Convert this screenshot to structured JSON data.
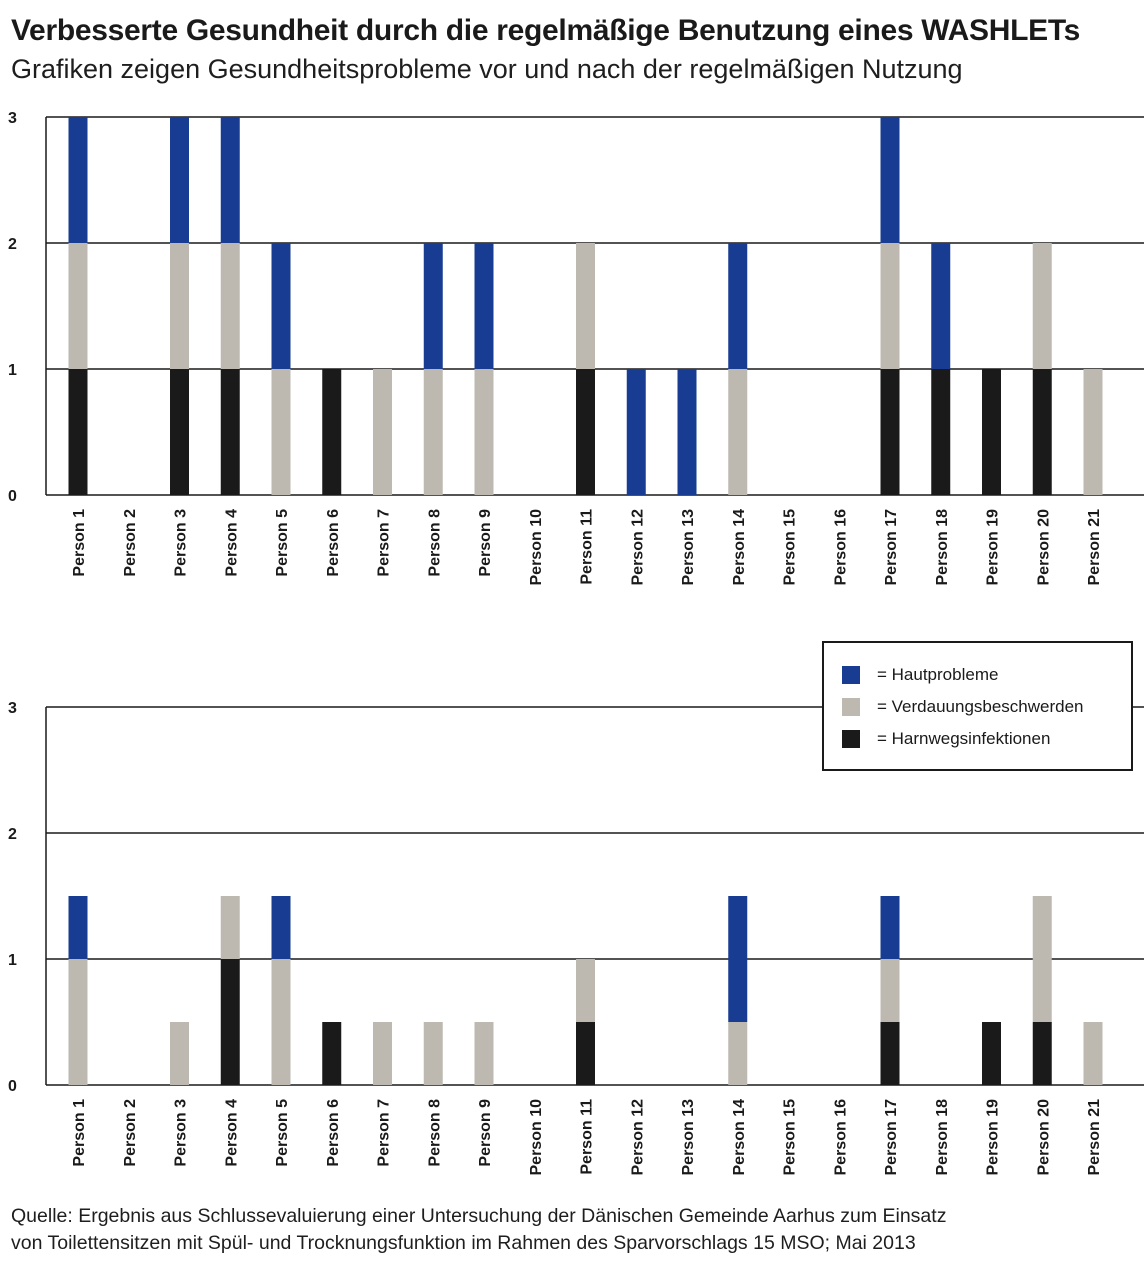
{
  "title": "Verbesserte Gesundheit durch die regelmäßige Benutzung eines WASHLETs",
  "subtitle": "Grafiken zeigen Gesundheitsprobleme vor und nach der regelmäßigen Nutzung",
  "colors": {
    "hautprobleme": "#173c91",
    "verdauungsbeschwerden": "#bdb8b0",
    "harnwegsinfektionen": "#1a1a1a"
  },
  "legend": [
    {
      "label": "= Hautprobleme",
      "color": "#173c91"
    },
    {
      "label": "= Verdauungsbeschwerden",
      "color": "#bdb8b0"
    },
    {
      "label": "= Harnwegsinfektionen",
      "color": "#1a1a1a"
    }
  ],
  "source": {
    "line1": "Quelle: Ergebnis aus Schlussevaluierung einer Untersuchung der Dänischen Gemeinde Aarhus zum Einsatz",
    "line2": "von Toilettensitzen mit Spül- und Trocknungsfunktion im Rahmen des Sparvorschlags 15 MSO; Mai 2013"
  },
  "chart_data": [
    {
      "type": "bar",
      "stacked": true,
      "categories": [
        "Person 1",
        "Person 2",
        "Person 3",
        "Person 4",
        "Person 5",
        "Person 6",
        "Person 7",
        "Person 8",
        "Person 9",
        "Person 10",
        "Person 11",
        "Person 12",
        "Person 13",
        "Person 14",
        "Person 15",
        "Person 16",
        "Person 17",
        "Person 18",
        "Person 19",
        "Person 20",
        "Person 21"
      ],
      "ylim": [
        0,
        3
      ],
      "yticks": [
        "0",
        "1",
        "2",
        "3"
      ],
      "grid": true,
      "series": [
        {
          "name": "Harnwegsinfektionen",
          "color": "#1a1a1a",
          "values": [
            1,
            0,
            1,
            1,
            0,
            1,
            0,
            0,
            0,
            0,
            1,
            0,
            0,
            0,
            0,
            0,
            1,
            1,
            1,
            1,
            0
          ]
        },
        {
          "name": "Verdauungsbeschwerden",
          "color": "#bdb8b0",
          "values": [
            1,
            0,
            1,
            1,
            1,
            0,
            1,
            1,
            1,
            0,
            1,
            0,
            0,
            1,
            0,
            0,
            1,
            0,
            0,
            1,
            1
          ]
        },
        {
          "name": "Hautprobleme",
          "color": "#173c91",
          "values": [
            1,
            0,
            1,
            1,
            1,
            0,
            0,
            1,
            1,
            0,
            0,
            1,
            1,
            1,
            0,
            0,
            1,
            1,
            0,
            0,
            0
          ]
        }
      ]
    },
    {
      "type": "bar",
      "stacked": true,
      "categories": [
        "Person 1",
        "Person 2",
        "Person 3",
        "Person 4",
        "Person 5",
        "Person 6",
        "Person 7",
        "Person 8",
        "Person 9",
        "Person 10",
        "Person 11",
        "Person 12",
        "Person 13",
        "Person 14",
        "Person 15",
        "Person 16",
        "Person 17",
        "Person 18",
        "Person 19",
        "Person 20",
        "Person 21"
      ],
      "ylim": [
        0,
        3
      ],
      "yticks": [
        "0",
        "1",
        "2",
        "3"
      ],
      "grid": true,
      "legend_position": "top-right",
      "series": [
        {
          "name": "Harnwegsinfektionen",
          "color": "#1a1a1a",
          "values": [
            0,
            0,
            0,
            1,
            0,
            0.5,
            0,
            0,
            0,
            0,
            0.5,
            0,
            0,
            0,
            0,
            0,
            0.5,
            0,
            0.5,
            0.5,
            0
          ]
        },
        {
          "name": "Verdauungsbeschwerden",
          "color": "#bdb8b0",
          "values": [
            1,
            0,
            0.5,
            0.5,
            1,
            0,
            0.5,
            0.5,
            0.5,
            0,
            0.5,
            0,
            0,
            0.5,
            0,
            0,
            0.5,
            0,
            0,
            1,
            0.5
          ]
        },
        {
          "name": "Hautprobleme",
          "color": "#173c91",
          "values": [
            0.5,
            0,
            0,
            0,
            0.5,
            0,
            0,
            0,
            0,
            0,
            0,
            0,
            0,
            1,
            0,
            0,
            0.5,
            0,
            0,
            0,
            0
          ]
        }
      ]
    }
  ]
}
